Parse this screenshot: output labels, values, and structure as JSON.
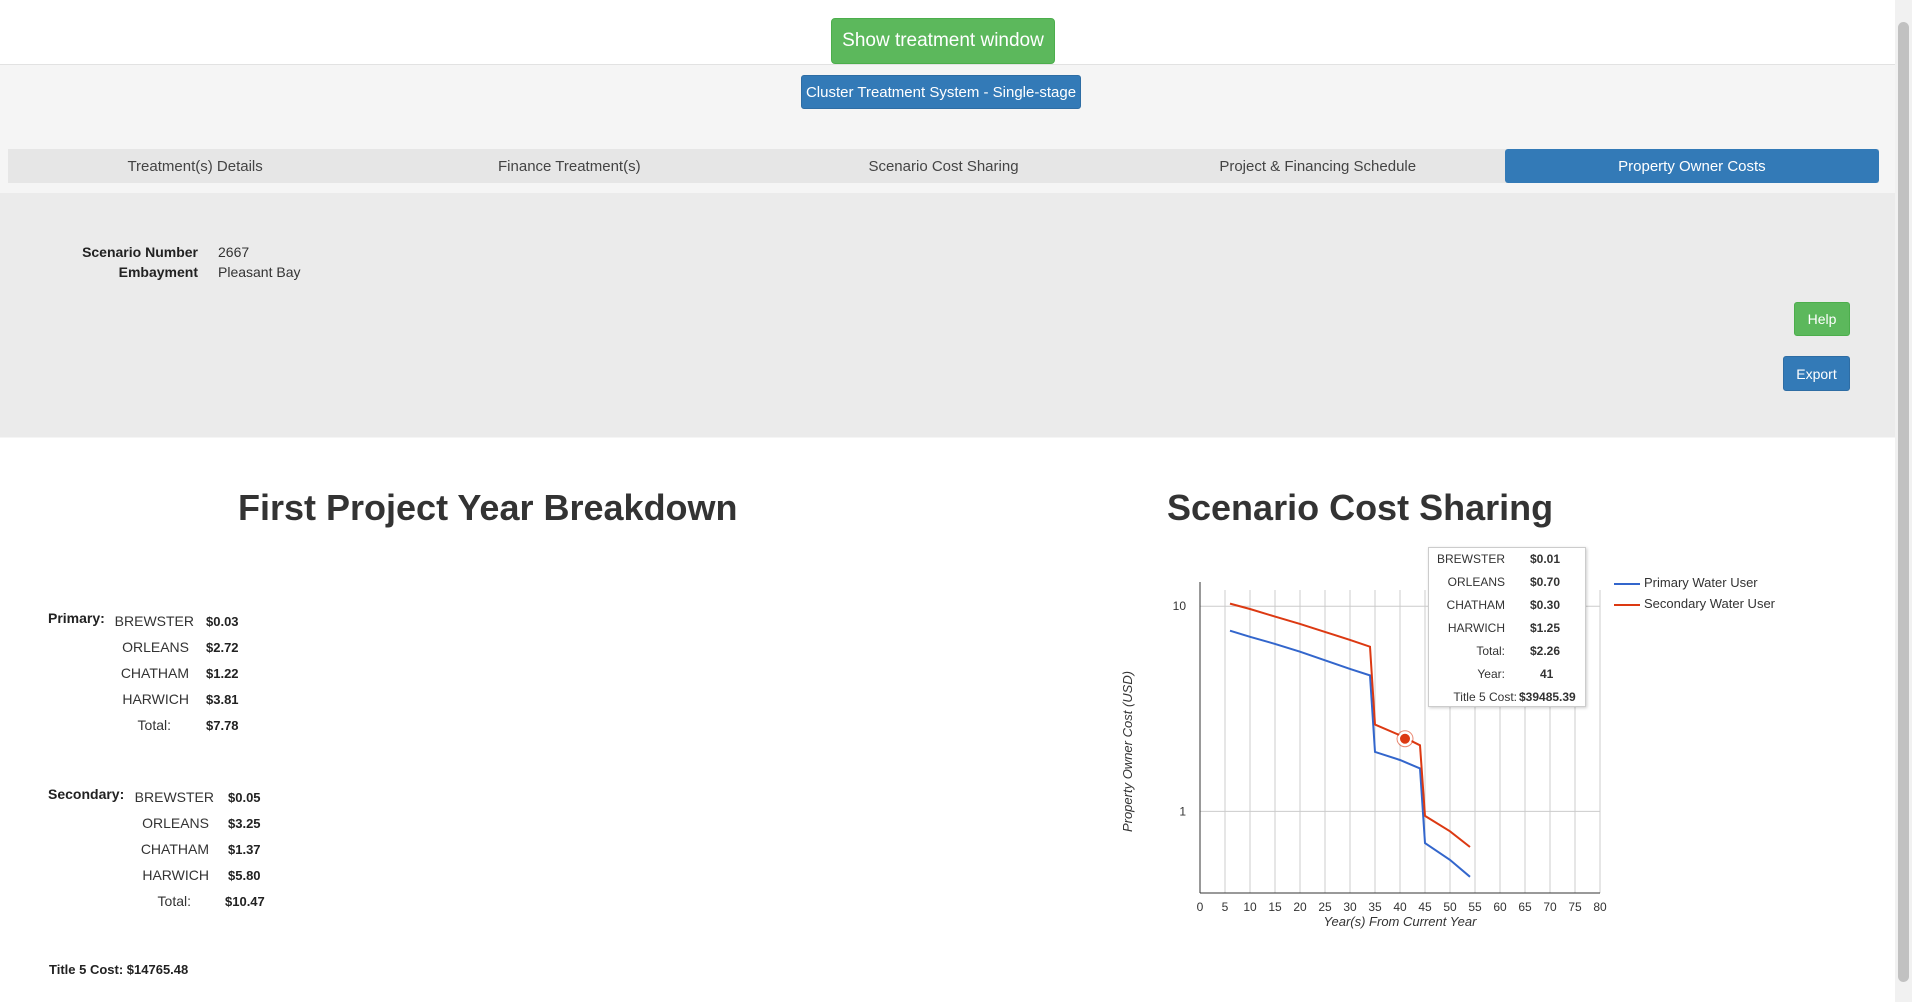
{
  "top": {
    "show_button": "Show treatment window"
  },
  "treatment_label": "Cluster Treatment System - Single-stage",
  "tabs": [
    {
      "label": "Treatment(s) Details",
      "active": false
    },
    {
      "label": "Finance Treatment(s)",
      "active": false
    },
    {
      "label": "Scenario Cost Sharing",
      "active": false
    },
    {
      "label": "Project & Financing Schedule",
      "active": false
    },
    {
      "label": "Property Owner Costs",
      "active": true
    }
  ],
  "info": {
    "scenario_label": "Scenario Number",
    "scenario_value": "2667",
    "embayment_label": "Embayment",
    "embayment_value": "Pleasant Bay"
  },
  "buttons": {
    "help": "Help",
    "export": "Export"
  },
  "breakdown": {
    "title": "First Project Year Breakdown",
    "primary": {
      "label": "Primary:",
      "rows": [
        {
          "town": "BREWSTER",
          "cost": "$0.03"
        },
        {
          "town": "ORLEANS",
          "cost": "$2.72"
        },
        {
          "town": "CHATHAM",
          "cost": "$1.22"
        },
        {
          "town": "HARWICH",
          "cost": "$3.81"
        },
        {
          "town": "Total:",
          "cost": "$7.78"
        }
      ]
    },
    "secondary": {
      "label": "Secondary:",
      "rows": [
        {
          "town": "BREWSTER",
          "cost": "$0.05"
        },
        {
          "town": "ORLEANS",
          "cost": "$3.25"
        },
        {
          "town": "CHATHAM",
          "cost": "$1.37"
        },
        {
          "town": "HARWICH",
          "cost": "$5.80"
        },
        {
          "town": "Total:",
          "cost": "$10.47"
        }
      ]
    },
    "title5_label": "Title 5 Cost:",
    "title5_value": "$14765.48"
  },
  "sharing_title": "Scenario Cost Sharing",
  "tooltip": {
    "rows": [
      {
        "k": "BREWSTER",
        "v": "$0.01"
      },
      {
        "k": "ORLEANS",
        "v": "$0.70"
      },
      {
        "k": "CHATHAM",
        "v": "$0.30"
      },
      {
        "k": "HARWICH",
        "v": "$1.25"
      },
      {
        "k": "Total:",
        "v": "$2.26"
      },
      {
        "k": "Year:",
        "v": "41"
      },
      {
        "k": "Title 5 Cost:",
        "v": "$39485.39"
      }
    ]
  },
  "chart_data": {
    "type": "line",
    "xlabel": "Year(s) From Current Year",
    "ylabel": "Property Owner Cost (USD)",
    "x_ticks": [
      0,
      5,
      10,
      15,
      20,
      25,
      30,
      35,
      40,
      45,
      50,
      55,
      60,
      65,
      70,
      75,
      80
    ],
    "y_ticks": [
      1,
      10
    ],
    "y_scale": "log",
    "xlim": [
      0,
      80
    ],
    "ylim": [
      0.4,
      12
    ],
    "grid": true,
    "legend_position": "right",
    "highlight": {
      "series": "Secondary Water User",
      "x": 41,
      "y": 2.26
    },
    "series": [
      {
        "name": "Primary Water User",
        "color": "#3366cc",
        "points": [
          [
            6,
            7.6
          ],
          [
            10,
            7.1
          ],
          [
            15,
            6.55
          ],
          [
            20,
            6.0
          ],
          [
            25,
            5.45
          ],
          [
            30,
            4.95
          ],
          [
            34,
            4.6
          ],
          [
            35,
            1.95
          ],
          [
            40,
            1.78
          ],
          [
            44,
            1.62
          ],
          [
            45,
            0.7
          ],
          [
            50,
            0.58
          ],
          [
            54,
            0.48
          ]
        ]
      },
      {
        "name": "Secondary Water User",
        "color": "#dc3912",
        "points": [
          [
            6,
            10.3
          ],
          [
            10,
            9.7
          ],
          [
            15,
            8.9
          ],
          [
            20,
            8.2
          ],
          [
            25,
            7.5
          ],
          [
            30,
            6.85
          ],
          [
            34,
            6.35
          ],
          [
            35,
            2.65
          ],
          [
            40,
            2.35
          ],
          [
            44,
            2.1
          ],
          [
            45,
            0.95
          ],
          [
            50,
            0.8
          ],
          [
            54,
            0.67
          ]
        ]
      }
    ]
  }
}
